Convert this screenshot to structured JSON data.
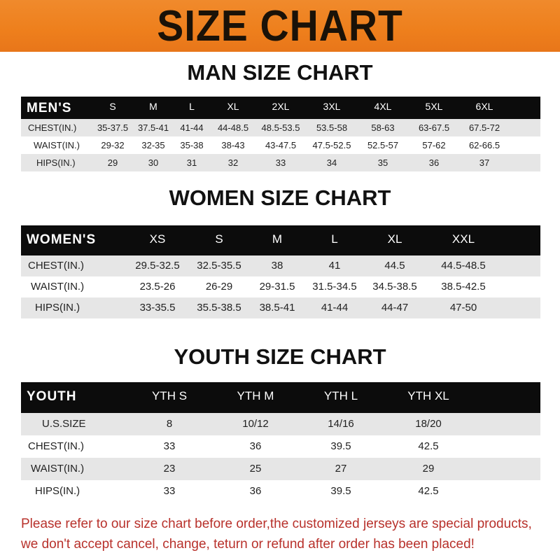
{
  "banner": {
    "title": "SIZE CHART",
    "color": "#ee7f1c"
  },
  "men": {
    "title": "MAN SIZE CHART",
    "headers": [
      "MEN'S",
      "S",
      "M",
      "L",
      "XL",
      "2XL",
      "3XL",
      "4XL",
      "5XL",
      "6XL"
    ],
    "rows": [
      [
        "CHEST(IN.)",
        "35-37.5",
        "37.5-41",
        "41-44",
        "44-48.5",
        "48.5-53.5",
        "53.5-58",
        "58-63",
        "63-67.5",
        "67.5-72"
      ],
      [
        "WAIST(IN.)",
        "29-32",
        "32-35",
        "35-38",
        "38-43",
        "43-47.5",
        "47.5-52.5",
        "52.5-57",
        "57-62",
        "62-66.5"
      ],
      [
        "HIPS(IN.)",
        "29",
        "30",
        "31",
        "32",
        "33",
        "34",
        "35",
        "36",
        "37"
      ]
    ]
  },
  "women": {
    "title": "WOMEN SIZE CHART",
    "headers": [
      "WOMEN'S",
      "XS",
      "S",
      "M",
      "L",
      "XL",
      "XXL"
    ],
    "rows": [
      [
        "CHEST(IN.)",
        "29.5-32.5",
        "32.5-35.5",
        "38",
        "41",
        "44.5",
        "44.5-48.5"
      ],
      [
        "WAIST(IN.)",
        "23.5-26",
        "26-29",
        "29-31.5",
        "31.5-34.5",
        "34.5-38.5",
        "38.5-42.5"
      ],
      [
        "HIPS(IN.)",
        "33-35.5",
        "35.5-38.5",
        "38.5-41",
        "41-44",
        "44-47",
        "47-50"
      ]
    ]
  },
  "youth": {
    "title": "YOUTH SIZE CHART",
    "headers": [
      "YOUTH",
      "YTH S",
      "YTH M",
      "YTH L",
      "YTH XL"
    ],
    "rows": [
      [
        "U.S.SIZE",
        "8",
        "10/12",
        "14/16",
        "18/20"
      ],
      [
        "CHEST(IN.)",
        "33",
        "36",
        "39.5",
        "42.5"
      ],
      [
        "WAIST(IN.)",
        "23",
        "25",
        "27",
        "29"
      ],
      [
        "HIPS(IN.)",
        "33",
        "36",
        "39.5",
        "42.5"
      ]
    ]
  },
  "note": {
    "line1": "Please refer to our size chart before order,the customized jerseys are special products,",
    "line2": "we don't accept cancel, change, teturn or refund after order has been placed!",
    "color": "#b8312b"
  }
}
